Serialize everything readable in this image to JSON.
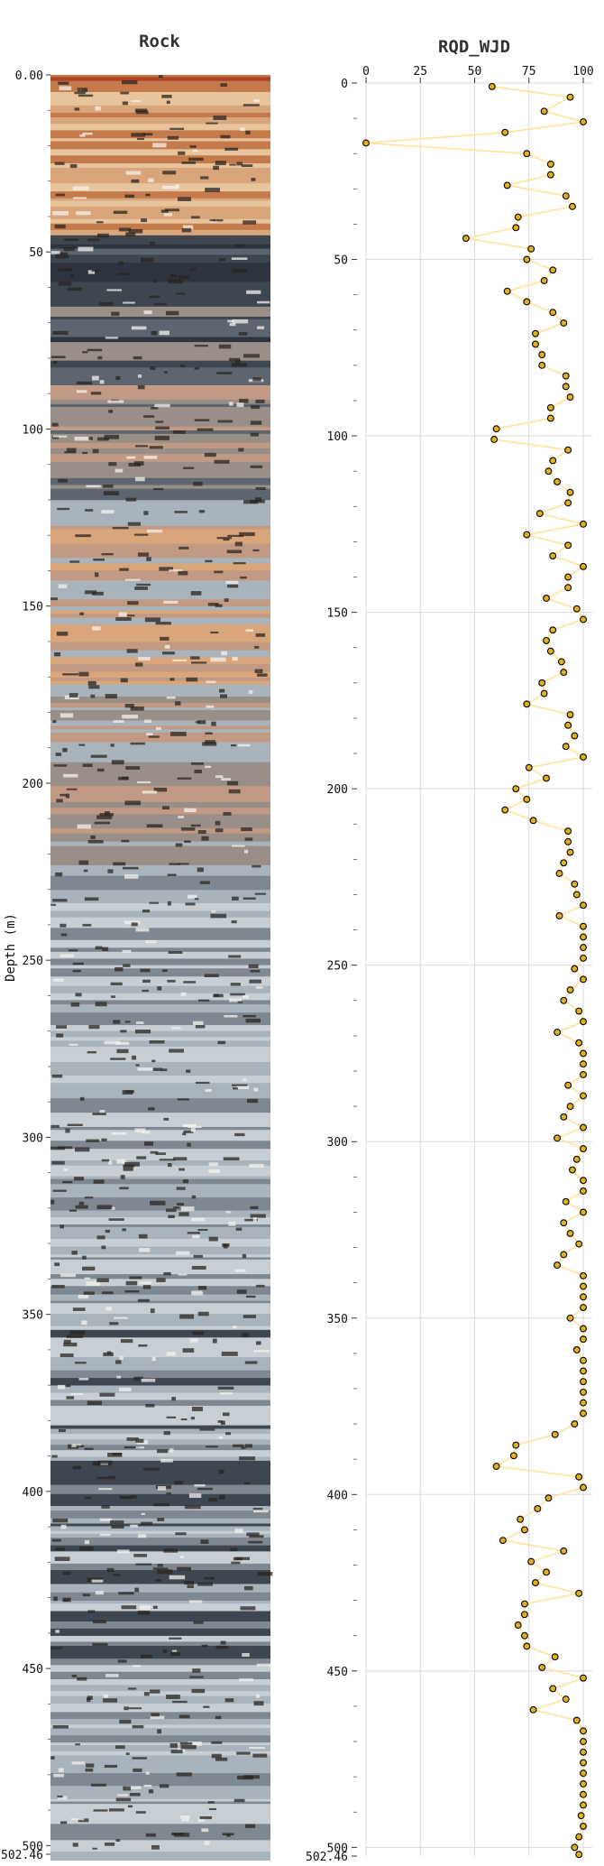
{
  "colors": {
    "series_line": "#ffe39a",
    "marker_fill": "#e0b020",
    "marker_edge": "#000000",
    "grid": "#d9d9d9",
    "core_palette": [
      "#b0442a",
      "#c47a4a",
      "#d9a57a",
      "#e8c49c",
      "#9a8f88",
      "#5d6670",
      "#3e4650",
      "#2f3540",
      "#c29a84",
      "#a9b3bc",
      "#c8cfd4",
      "#7f8890"
    ]
  },
  "chart_data": [
    {
      "type": "image",
      "title": "Rock",
      "ylabel": "Depth (m)",
      "ylim": [
        0.0,
        502.46
      ],
      "yticks": [
        0,
        50,
        100,
        150,
        200,
        250,
        300,
        350,
        400,
        450,
        500
      ],
      "ytick_labels": [
        "0.00",
        "50",
        "100",
        "150",
        "200",
        "250",
        "300",
        "350",
        "400",
        "450",
        "500"
      ],
      "end_label": "502.46"
    },
    {
      "type": "line",
      "title": "RQD_WJD",
      "xlim": [
        0,
        100
      ],
      "xticks": [
        0,
        25,
        50,
        75,
        100
      ],
      "ylim": [
        0,
        502.46
      ],
      "yticks": [
        0,
        50,
        100,
        150,
        200,
        250,
        300,
        350,
        400,
        450,
        500
      ],
      "ytick_labels": [
        "0",
        "50",
        "100",
        "150",
        "200",
        "250",
        "300",
        "350",
        "400",
        "450",
        "500"
      ],
      "end_label": "502.46",
      "grid": true,
      "series": [
        {
          "depth": [
            1,
            4,
            8,
            11,
            14,
            17,
            20,
            23,
            26,
            29,
            32,
            35,
            38,
            41,
            44,
            47,
            50,
            53,
            56,
            59,
            62,
            65,
            68,
            71,
            74,
            77,
            80,
            83,
            86,
            89,
            92,
            95,
            98,
            101,
            104,
            107,
            110,
            113,
            116,
            119,
            122,
            125,
            128,
            131,
            134,
            137,
            140,
            143,
            146,
            149,
            152,
            155,
            158,
            161,
            164,
            167,
            170,
            173,
            176,
            179,
            182,
            185,
            188,
            191,
            194,
            197,
            200,
            203,
            206,
            209,
            212,
            215,
            218,
            221,
            224,
            227,
            230,
            233,
            236,
            239,
            242,
            245,
            248,
            251,
            254,
            257,
            260,
            263,
            266,
            269,
            272,
            275,
            278,
            281,
            284,
            287,
            290,
            293,
            296,
            299,
            302,
            305,
            308,
            311,
            314,
            317,
            320,
            323,
            326,
            329,
            332,
            335,
            338,
            341,
            344,
            347,
            350,
            353,
            356,
            359,
            362,
            365,
            368,
            371,
            374,
            377,
            380,
            383,
            386,
            389,
            392,
            395,
            398,
            401,
            404,
            407,
            410,
            413,
            416,
            419,
            422,
            425,
            428,
            431,
            434,
            437,
            440,
            443,
            446,
            449,
            452,
            455,
            458,
            461,
            464,
            467,
            470,
            473,
            476,
            479,
            482,
            485,
            488,
            491,
            494,
            497,
            500,
            502
          ],
          "values": [
            58,
            94,
            82,
            100,
            64,
            0,
            74,
            85,
            85,
            65,
            92,
            95,
            70,
            69,
            46,
            76,
            74,
            86,
            82,
            65,
            74,
            86,
            91,
            78,
            78,
            81,
            81,
            92,
            92,
            94,
            85,
            85,
            60,
            59,
            93,
            86,
            84,
            88,
            94,
            93,
            80,
            100,
            74,
            93,
            86,
            100,
            93,
            93,
            83,
            97,
            100,
            86,
            83,
            85,
            90,
            91,
            81,
            82,
            74,
            94,
            93,
            96,
            92,
            100,
            75,
            83,
            69,
            74,
            64,
            77,
            93,
            93,
            94,
            91,
            89,
            96,
            97,
            100,
            89,
            100,
            100,
            100,
            100,
            96,
            100,
            94,
            91,
            98,
            100,
            88,
            98,
            100,
            100,
            100,
            93,
            100,
            94,
            91,
            100,
            88,
            100,
            97,
            95,
            100,
            100,
            92,
            100,
            91,
            94,
            98,
            91,
            88,
            100,
            100,
            100,
            100,
            94,
            100,
            100,
            97,
            100,
            100,
            100,
            100,
            100,
            100,
            96,
            87,
            69,
            68,
            60,
            98,
            100,
            84,
            79,
            71,
            73,
            63,
            91,
            76,
            83,
            78,
            98,
            73,
            73,
            70,
            73,
            74,
            87,
            81,
            100,
            86,
            92,
            77,
            97,
            100,
            100,
            100,
            100,
            100,
            100,
            100,
            100,
            99,
            100,
            98,
            96,
            98
          ]
        }
      ]
    }
  ]
}
